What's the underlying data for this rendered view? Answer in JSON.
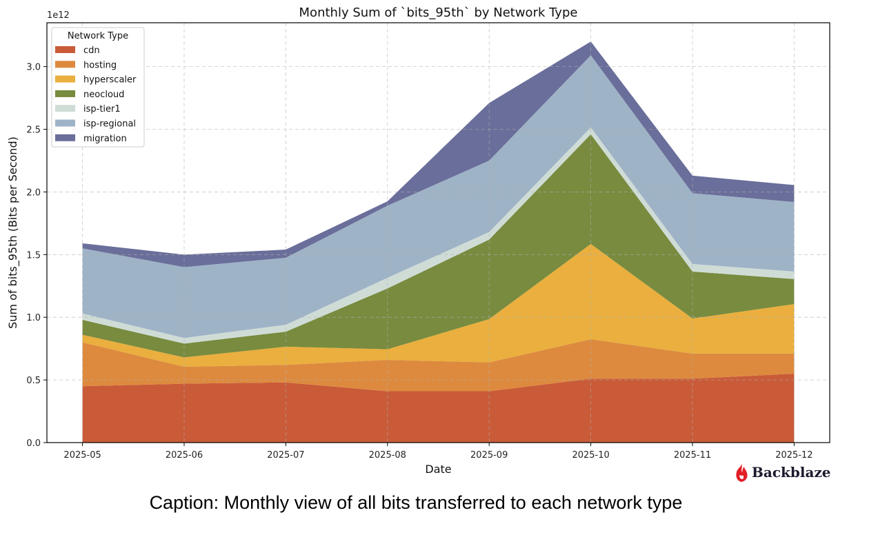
{
  "chart_data": {
    "type": "area",
    "stacked": true,
    "title": "Monthly Sum of `bits_95th` by Network Type",
    "xlabel": "Date",
    "ylabel": "Sum of bits_95th (Bits per Second)",
    "y_offset_label": "1e12",
    "categories": [
      "2025-05",
      "2025-06",
      "2025-07",
      "2025-08",
      "2025-09",
      "2025-10",
      "2025-11",
      "2025-12"
    ],
    "ylim": [
      0,
      3.35
    ],
    "yticks": [
      "0.0",
      "0.5",
      "1.0",
      "1.5",
      "2.0",
      "2.5",
      "3.0"
    ],
    "grid": true,
    "legend": {
      "title": "Network Type",
      "placement": "top-left"
    },
    "series": [
      {
        "name": "cdn",
        "color": "#c95b38",
        "values": [
          0.45,
          0.47,
          0.48,
          0.41,
          0.41,
          0.51,
          0.51,
          0.55
        ]
      },
      {
        "name": "hosting",
        "color": "#dd8a3e",
        "values": [
          0.35,
          0.135,
          0.14,
          0.25,
          0.23,
          0.315,
          0.2,
          0.16
        ]
      },
      {
        "name": "hyperscaler",
        "color": "#eaaf3e",
        "values": [
          0.06,
          0.075,
          0.145,
          0.085,
          0.345,
          0.76,
          0.28,
          0.395
        ]
      },
      {
        "name": "neocloud",
        "color": "#788b3f",
        "values": [
          0.12,
          0.11,
          0.12,
          0.485,
          0.635,
          0.875,
          0.375,
          0.2
        ]
      },
      {
        "name": "isp-tier1",
        "color": "#cfdcd6",
        "values": [
          0.05,
          0.045,
          0.055,
          0.085,
          0.06,
          0.055,
          0.06,
          0.06
        ]
      },
      {
        "name": "isp-regional",
        "color": "#9fb3c7",
        "values": [
          0.52,
          0.565,
          0.535,
          0.575,
          0.57,
          0.575,
          0.565,
          0.555
        ]
      },
      {
        "name": "migration",
        "color": "#6a6e9a",
        "values": [
          0.04,
          0.1,
          0.065,
          0.035,
          0.46,
          0.11,
          0.14,
          0.135
        ]
      }
    ],
    "units_note": "values in units of 1e12 bits per second"
  },
  "caption": "Caption: Monthly view of all bits transferred to each network type",
  "logo": {
    "text": "Backblaze",
    "color": "#e21e26"
  }
}
